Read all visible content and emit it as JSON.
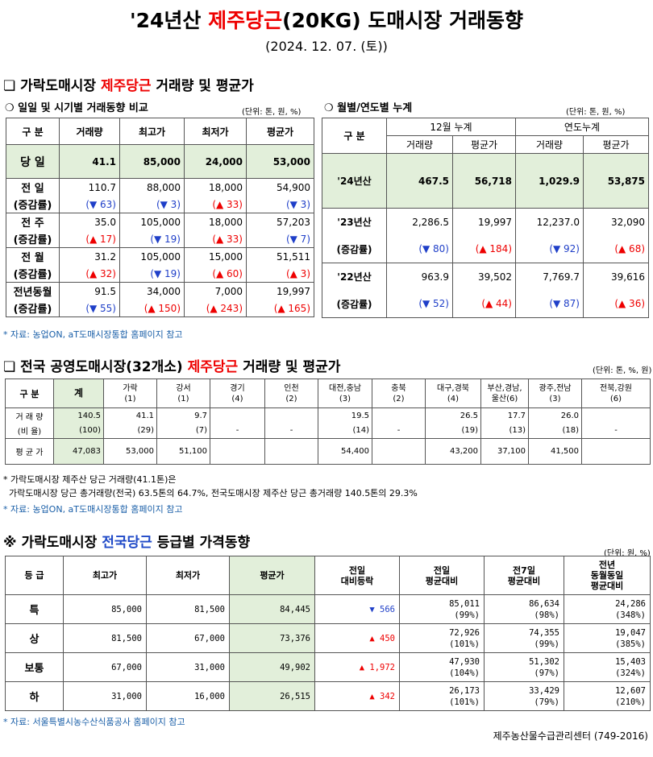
{
  "header": {
    "title_prefix": "'24년산 ",
    "title_red": "제주당근",
    "title_suffix": "(20KG) 도매시장 거래동향",
    "date": "(2024. 12. 07. (토))"
  },
  "section1": {
    "bullet": "❏",
    "title_prefix": "가락도매시장 ",
    "title_red": "제주당근",
    "title_suffix": " 거래량 및 평균가",
    "left": {
      "subtitle": "❍ 일일 및 시기별 거래동향 비교",
      "unit": "(단위: 톤, 원, %)",
      "headers": [
        "구  분",
        "거래량",
        "최고가",
        "최저가",
        "평균가"
      ],
      "today": {
        "label": "당  일",
        "values": [
          "41.1",
          "85,000",
          "24,000",
          "53,000"
        ]
      },
      "rows": [
        {
          "label": "전  일",
          "values": [
            "110.7",
            "88,000",
            "18,000",
            "54,900"
          ],
          "sub_label": "(증감률)",
          "changes": [
            {
              "dir": "dn",
              "text": "(▼ 63)"
            },
            {
              "dir": "dn",
              "text": "(▼ 3)"
            },
            {
              "dir": "up",
              "text": "(▲ 33)"
            },
            {
              "dir": "dn",
              "text": "(▼ 3)"
            }
          ]
        },
        {
          "label": "전  주",
          "values": [
            "35.0",
            "105,000",
            "18,000",
            "57,203"
          ],
          "sub_label": "(증감률)",
          "changes": [
            {
              "dir": "up",
              "text": "(▲ 17)"
            },
            {
              "dir": "dn",
              "text": "(▼ 19)"
            },
            {
              "dir": "up",
              "text": "(▲ 33)"
            },
            {
              "dir": "dn",
              "text": "(▼ 7)"
            }
          ]
        },
        {
          "label": "전  월",
          "values": [
            "31.2",
            "105,000",
            "15,000",
            "51,511"
          ],
          "sub_label": "(증감률)",
          "changes": [
            {
              "dir": "up",
              "text": "(▲ 32)"
            },
            {
              "dir": "dn",
              "text": "(▼ 19)"
            },
            {
              "dir": "up",
              "text": "(▲ 60)"
            },
            {
              "dir": "up",
              "text": "(▲ 3)"
            }
          ]
        },
        {
          "label": "전년동월",
          "values": [
            "91.5",
            "34,000",
            "7,000",
            "19,997"
          ],
          "sub_label": "(증감률)",
          "changes": [
            {
              "dir": "dn",
              "text": "(▼ 55)"
            },
            {
              "dir": "up",
              "text": "(▲ 150)"
            },
            {
              "dir": "up",
              "text": "(▲ 243)"
            },
            {
              "dir": "up",
              "text": "(▲ 165)"
            }
          ]
        }
      ]
    },
    "right": {
      "subtitle": "❍ 월별/연도별 누계",
      "unit": "(단위: 톤, 원, %)",
      "label_header": "구  분",
      "group1": "12월 누계",
      "group2": "연도누계",
      "sub_headers": [
        "거래량",
        "평균가",
        "거래량",
        "평균가"
      ],
      "current": {
        "label": "'24년산",
        "values": [
          "467.5",
          "56,718",
          "1,029.9",
          "53,875"
        ]
      },
      "rows": [
        {
          "label": "'23년산",
          "values": [
            "2,286.5",
            "19,997",
            "12,237.0",
            "32,090"
          ],
          "sub_label": "(증감률)",
          "changes": [
            {
              "dir": "dn",
              "text": "(▼ 80)"
            },
            {
              "dir": "up",
              "text": "(▲ 184)"
            },
            {
              "dir": "dn",
              "text": "(▼ 92)"
            },
            {
              "dir": "up",
              "text": "(▲ 68)"
            }
          ]
        },
        {
          "label": "'22년산",
          "values": [
            "963.9",
            "39,502",
            "7,769.7",
            "39,616"
          ],
          "sub_label": "(증감률)",
          "changes": [
            {
              "dir": "dn",
              "text": "(▼ 52)"
            },
            {
              "dir": "up",
              "text": "(▲ 44)"
            },
            {
              "dir": "dn",
              "text": "(▼ 87)"
            },
            {
              "dir": "up",
              "text": "(▲ 36)"
            }
          ]
        }
      ]
    },
    "note": "* 자료: 농업ON, aT도매시장통합 홈페이지 참고"
  },
  "section2": {
    "bullet": "❏",
    "title_prefix": "전국 공영도매시장(32개소) ",
    "title_red": "제주당근",
    "title_suffix": " 거래량 및 평균가",
    "unit": "(단위: 톤, %, 원)",
    "label_header": "구  분",
    "columns": [
      {
        "name": "계",
        "count": ""
      },
      {
        "name": "가락",
        "count": "(1)"
      },
      {
        "name": "강서",
        "count": "(1)"
      },
      {
        "name": "경기",
        "count": "(4)"
      },
      {
        "name": "인천",
        "count": "(2)"
      },
      {
        "name": "대전,충남",
        "count": "(3)"
      },
      {
        "name": "충북",
        "count": "(2)"
      },
      {
        "name": "대구,경북",
        "count": "(4)"
      },
      {
        "name": "부산,경남,",
        "count": "울산(6)"
      },
      {
        "name": "광주,전남",
        "count": "(3)"
      },
      {
        "name": "전북,강원",
        "count": "(6)"
      }
    ],
    "volume_label": "거 래 량",
    "volume": [
      "140.5",
      "41.1",
      "9.7",
      "",
      "",
      "19.5",
      "",
      "26.5",
      "17.7",
      "26.0",
      ""
    ],
    "ratio_label": "(비 율)",
    "ratio": [
      "(100)",
      "(29)",
      "(7)",
      "-",
      "-",
      "(14)",
      "-",
      "(19)",
      "(13)",
      "(18)",
      "-"
    ],
    "avg_label": "평 균 가",
    "avg": [
      "47,083",
      "53,000",
      "51,100",
      "",
      "",
      "54,400",
      "",
      "43,200",
      "37,100",
      "41,500",
      ""
    ],
    "notes": [
      "* 가락도매시장 제주산 당근 거래량(41.1톤)은",
      "  가락도매시장 당근 총거래량(전국) 63.5톤의 64.7%, 전국도매시장 제주산 당근 총거래량 140.5톤의 29.3%"
    ],
    "source": "* 자료: 농업ON, aT도매시장통합 홈페이지 참고"
  },
  "section3": {
    "bullet": "※",
    "title_prefix": "가락도매시장 ",
    "title_blue": "전국당근",
    "title_suffix": " 등급별 가격동향",
    "unit": "(단위: 원, %)",
    "headers": [
      "등  급",
      "최고가",
      "최저가",
      "평균가",
      "전일\n대비등락",
      "전일\n평균대비",
      "전7일\n평균대비",
      "전년\n동월동일\n평균대비"
    ],
    "rows": [
      {
        "grade": "특",
        "max": "85,000",
        "min": "81,500",
        "avg": "84,445",
        "dir": "dn",
        "diff": "▼ 566",
        "prev": "85,011",
        "prev_pct": "(99%)",
        "week": "86,634",
        "week_pct": "(98%)",
        "year": "24,286",
        "year_pct": "(348%)"
      },
      {
        "grade": "상",
        "max": "81,500",
        "min": "67,000",
        "avg": "73,376",
        "dir": "up",
        "diff": "▲ 450",
        "prev": "72,926",
        "prev_pct": "(101%)",
        "week": "74,355",
        "week_pct": "(99%)",
        "year": "19,047",
        "year_pct": "(385%)"
      },
      {
        "grade": "보통",
        "max": "67,000",
        "min": "31,000",
        "avg": "49,902",
        "dir": "up",
        "diff": "▲ 1,972",
        "prev": "47,930",
        "prev_pct": "(104%)",
        "week": "51,302",
        "week_pct": "(97%)",
        "year": "15,403",
        "year_pct": "(324%)"
      },
      {
        "grade": "하",
        "max": "31,000",
        "min": "16,000",
        "avg": "26,515",
        "dir": "up",
        "diff": "▲ 342",
        "prev": "26,173",
        "prev_pct": "(101%)",
        "week": "33,429",
        "week_pct": "(79%)",
        "year": "12,607",
        "year_pct": "(210%)"
      }
    ],
    "note": "* 자료: 서울특별시농수산식품공사 홈페이지 참고",
    "footer": "제주농산물수급관리센터 (749-2016)"
  },
  "colors": {
    "red": "#e00000",
    "blue": "#1f3fc8",
    "green_fill": "#e2efda",
    "note_blue": "#1a5fa8"
  }
}
